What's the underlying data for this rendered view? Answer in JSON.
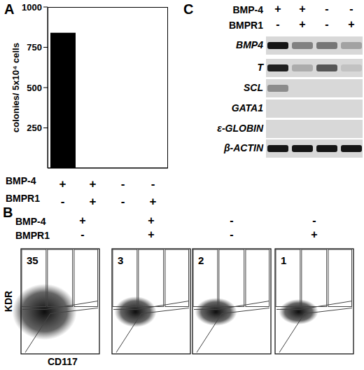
{
  "chart_data": {
    "type": "bar",
    "panel": "A",
    "y_label": "colonies/ 5x10⁴ cells",
    "categories": [
      null,
      null,
      null,
      null
    ],
    "values": [
      840,
      0,
      0,
      0
    ],
    "color": "#000000",
    "ylim": [
      0,
      1000
    ],
    "yticks": [
      250,
      500,
      750,
      1000
    ],
    "grid": false,
    "condition_rows": [
      {
        "name": "BMP-4",
        "marks": [
          "+",
          "+",
          "-",
          "-"
        ]
      },
      {
        "name": "BMPR1",
        "marks": [
          "-",
          "+",
          "-",
          "+"
        ]
      }
    ]
  },
  "flow_panel": {
    "panel": "B",
    "x_label": "CD117",
    "y_label": "KDR",
    "condition_rows": [
      {
        "name": "BMP-4",
        "marks": [
          "+",
          "+",
          "-",
          "-"
        ]
      },
      {
        "name": "BMPR1",
        "marks": [
          "-",
          "+",
          "-",
          "+"
        ]
      }
    ],
    "gate_values": [
      35,
      3,
      2,
      1
    ]
  },
  "gel_panel": {
    "panel": "C",
    "condition_rows": [
      {
        "name": "BMP-4",
        "marks": [
          "+",
          "+",
          "-",
          "-"
        ]
      },
      {
        "name": "BMPR1",
        "marks": [
          "-",
          "+",
          "-",
          "+"
        ]
      }
    ],
    "genes": [
      "BMP4",
      "T",
      "SCL",
      "GATA1",
      "ε-GLOBIN",
      "β-ACTIN"
    ],
    "band_intensity": [
      [
        0.9,
        0.4,
        0.45,
        0.25
      ],
      [
        0.85,
        0.2,
        0.6,
        0.1
      ],
      [
        0.35,
        0,
        0,
        0
      ],
      [
        0,
        0,
        0,
        0
      ],
      [
        0,
        0,
        0,
        0
      ],
      [
        0.9,
        0.9,
        0.9,
        0.9
      ]
    ]
  }
}
